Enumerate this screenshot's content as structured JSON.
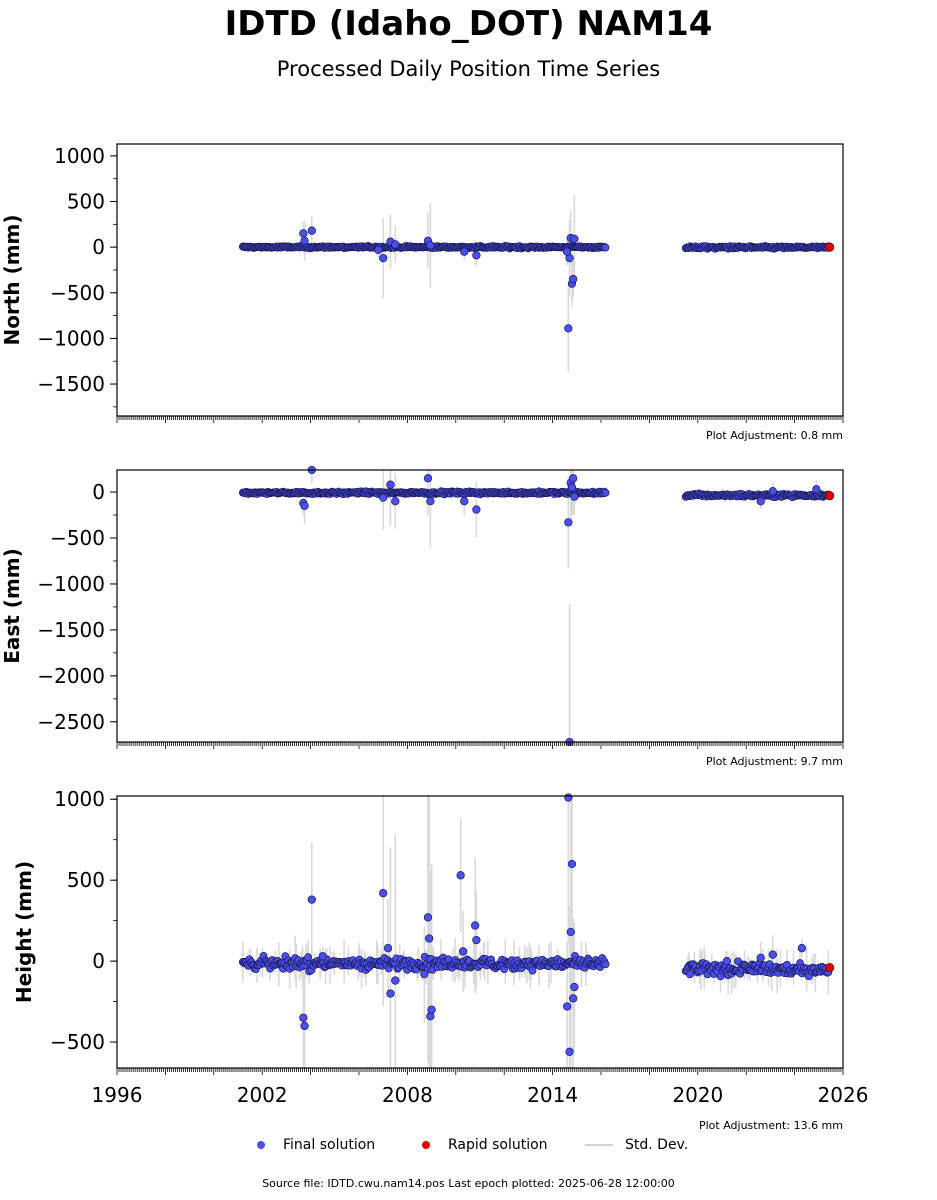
{
  "title": "IDTD (Idaho_DOT) NAM14",
  "subtitle": "Processed Daily Position Time Series",
  "legend": {
    "final": "Final solution",
    "rapid": "Rapid solution",
    "std": "Std. Dev."
  },
  "colors": {
    "final": "#4b4ff0",
    "final_edge": "#1a1a50",
    "rapid": "#e00000",
    "std": "#d3d3d3"
  },
  "source_note": "Source file: IDTD.cwu.nam14.pos  Last epoch plotted: 2025-06-28 12:00:00",
  "chart_data": [
    {
      "type": "scatter",
      "ylabel": "North (mm)",
      "adjustment": "Plot Adjustment: 0.8 mm",
      "xlim": [
        1996,
        2026
      ],
      "ylim": [
        -1850,
        1130
      ],
      "yticks": [
        1000,
        500,
        0,
        -500,
        -1000,
        -1500
      ],
      "ytick_labels": [
        "1000",
        "500",
        "0",
        "−500",
        "−1000",
        "−1500"
      ],
      "segments": [
        {
          "x0": 2001.2,
          "x1": 2016.2,
          "y": 0,
          "sd": 12,
          "jitter": 8
        },
        {
          "x0": 2019.5,
          "x1": 2025.45,
          "y": -3,
          "sd": 10,
          "jitter": 10
        }
      ],
      "outliers": [
        {
          "x": 2003.7,
          "y": 150,
          "sd": 130
        },
        {
          "x": 2003.75,
          "y": 70,
          "sd": 220
        },
        {
          "x": 2004.05,
          "y": 180,
          "sd": 160
        },
        {
          "x": 2006.8,
          "y": -30,
          "sd": 80
        },
        {
          "x": 2007.0,
          "y": -120,
          "sd": 440
        },
        {
          "x": 2007.3,
          "y": 60,
          "sd": 300
        },
        {
          "x": 2007.5,
          "y": 30,
          "sd": 200
        },
        {
          "x": 2008.85,
          "y": 70,
          "sd": 300
        },
        {
          "x": 2008.95,
          "y": 20,
          "sd": 460
        },
        {
          "x": 2010.35,
          "y": -50,
          "sd": 100
        },
        {
          "x": 2010.85,
          "y": -90,
          "sd": 120
        },
        {
          "x": 2014.65,
          "y": -890,
          "sd": 480
        },
        {
          "x": 2014.7,
          "y": -120,
          "sd": 420
        },
        {
          "x": 2014.75,
          "y": 100,
          "sd": 300
        },
        {
          "x": 2014.8,
          "y": -400,
          "sd": 250
        },
        {
          "x": 2014.85,
          "y": -350,
          "sd": 200
        },
        {
          "x": 2014.9,
          "y": 90,
          "sd": 480
        },
        {
          "x": 2014.6,
          "y": -50,
          "sd": 150
        }
      ],
      "rapid": [
        {
          "x": 2025.45,
          "y": 0
        }
      ]
    },
    {
      "type": "scatter",
      "ylabel": "East (mm)",
      "adjustment": "Plot Adjustment: 9.7 mm",
      "xlim": [
        1996,
        2026
      ],
      "ylim": [
        -2720,
        240
      ],
      "yticks": [
        0,
        -500,
        -1000,
        -1500,
        -2000,
        -2500
      ],
      "ytick_labels": [
        "0",
        "−500",
        "−1000",
        "−1500",
        "−2000",
        "−2500"
      ],
      "segments": [
        {
          "x0": 2001.2,
          "x1": 2016.2,
          "y": -8,
          "sd": 15,
          "jitter": 10
        },
        {
          "x0": 2019.5,
          "x1": 2025.45,
          "y": -35,
          "sd": 12,
          "jitter": 12
        }
      ],
      "outliers": [
        {
          "x": 2003.7,
          "y": -120,
          "sd": 120
        },
        {
          "x": 2003.75,
          "y": -150,
          "sd": 200
        },
        {
          "x": 2004.05,
          "y": 240,
          "sd": 150
        },
        {
          "x": 2007.0,
          "y": -60,
          "sd": 350
        },
        {
          "x": 2007.3,
          "y": 80,
          "sd": 450
        },
        {
          "x": 2007.5,
          "y": -100,
          "sd": 300
        },
        {
          "x": 2008.85,
          "y": 150,
          "sd": 400
        },
        {
          "x": 2008.95,
          "y": -100,
          "sd": 500
        },
        {
          "x": 2010.35,
          "y": -100,
          "sd": 150
        },
        {
          "x": 2010.85,
          "y": -190,
          "sd": 300
        },
        {
          "x": 2014.65,
          "y": -330,
          "sd": 500
        },
        {
          "x": 2014.7,
          "y": -2720,
          "sd": 1500
        },
        {
          "x": 2014.75,
          "y": 100,
          "sd": 400
        },
        {
          "x": 2014.8,
          "y": 50,
          "sd": 300
        },
        {
          "x": 2014.85,
          "y": 150,
          "sd": 400
        },
        {
          "x": 2014.9,
          "y": -50,
          "sd": 200
        },
        {
          "x": 2022.6,
          "y": -100,
          "sd": 80
        },
        {
          "x": 2023.1,
          "y": 10,
          "sd": 90
        },
        {
          "x": 2024.9,
          "y": 30,
          "sd": 100
        }
      ],
      "rapid": [
        {
          "x": 2025.45,
          "y": -40
        }
      ]
    },
    {
      "type": "scatter",
      "ylabel": "Height (mm)",
      "adjustment": "Plot Adjustment: 13.6 mm",
      "xlim": [
        1996,
        2026
      ],
      "xticks": [
        1996,
        2002,
        2008,
        2014,
        2020,
        2026
      ],
      "xtick_labels": [
        "1996",
        "2002",
        "2008",
        "2014",
        "2020",
        "2026"
      ],
      "ylim": [
        -660,
        1020
      ],
      "yticks": [
        1000,
        500,
        0,
        -500
      ],
      "ytick_labels": [
        "1000",
        "500",
        "0",
        "−500"
      ],
      "segments": [
        {
          "x0": 2001.2,
          "x1": 2016.2,
          "y": -15,
          "sd": 40,
          "jitter": 25
        },
        {
          "x0": 2019.5,
          "x1": 2025.45,
          "y": -50,
          "sd": 40,
          "jitter": 25
        }
      ],
      "outliers": [
        {
          "x": 2003.7,
          "y": -350,
          "sd": 300
        },
        {
          "x": 2003.75,
          "y": -400,
          "sd": 350
        },
        {
          "x": 2004.05,
          "y": 380,
          "sd": 350
        },
        {
          "x": 2004.5,
          "y": 30,
          "sd": 60
        },
        {
          "x": 2007.0,
          "y": 420,
          "sd": 700
        },
        {
          "x": 2007.2,
          "y": 80,
          "sd": 300
        },
        {
          "x": 2007.3,
          "y": -200,
          "sd": 900
        },
        {
          "x": 2007.5,
          "y": -120,
          "sd": 900
        },
        {
          "x": 2008.7,
          "y": -80,
          "sd": 300
        },
        {
          "x": 2008.85,
          "y": 270,
          "sd": 900
        },
        {
          "x": 2008.9,
          "y": 140,
          "sd": 900
        },
        {
          "x": 2008.95,
          "y": -340,
          "sd": 900
        },
        {
          "x": 2009.0,
          "y": -300,
          "sd": 900
        },
        {
          "x": 2010.2,
          "y": 530,
          "sd": 350
        },
        {
          "x": 2010.3,
          "y": 60,
          "sd": 250
        },
        {
          "x": 2010.8,
          "y": 220,
          "sd": 420
        },
        {
          "x": 2010.85,
          "y": 130,
          "sd": 300
        },
        {
          "x": 2014.65,
          "y": 1010,
          "sd": 900
        },
        {
          "x": 2014.7,
          "y": -560,
          "sd": 900
        },
        {
          "x": 2014.75,
          "y": 180,
          "sd": 900
        },
        {
          "x": 2014.8,
          "y": 600,
          "sd": 900
        },
        {
          "x": 2014.85,
          "y": -230,
          "sd": 500
        },
        {
          "x": 2014.6,
          "y": -280,
          "sd": 400
        },
        {
          "x": 2014.9,
          "y": -160,
          "sd": 400
        },
        {
          "x": 2021.2,
          "y": 0,
          "sd": 60
        },
        {
          "x": 2022.6,
          "y": 20,
          "sd": 100
        },
        {
          "x": 2023.1,
          "y": 40,
          "sd": 120
        },
        {
          "x": 2024.3,
          "y": 80,
          "sd": 60
        }
      ],
      "rapid": [
        {
          "x": 2025.45,
          "y": -40
        }
      ]
    }
  ]
}
